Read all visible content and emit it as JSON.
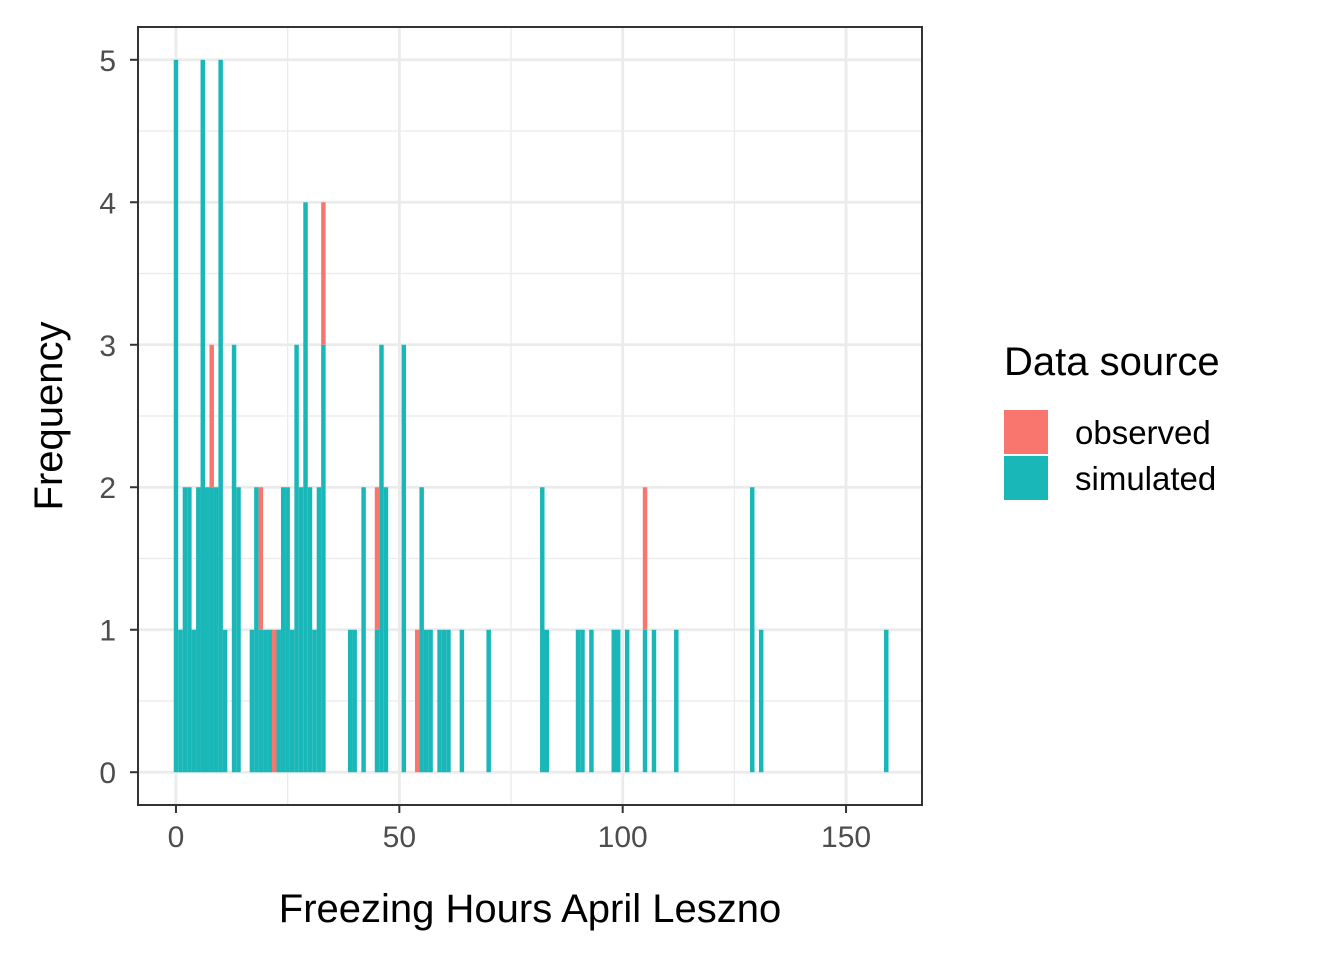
{
  "chart_data": {
    "type": "bar",
    "subtype": "stacked-histogram",
    "title": "",
    "xlabel": "Freezing Hours April Leszno",
    "ylabel": "Frequency",
    "xlim": [
      -8.5,
      167
    ],
    "ylim": [
      -0.23,
      5.23
    ],
    "x_ticks": [
      0,
      50,
      100,
      150
    ],
    "y_ticks": [
      0,
      1,
      2,
      3,
      4,
      5
    ],
    "x_minor_ticks": [
      25,
      75,
      125
    ],
    "y_minor_ticks": [
      0.5,
      1.5,
      2.5,
      3.5,
      4.5
    ],
    "bin_width": 1,
    "grid": true,
    "legend": {
      "title": "Data source",
      "position": "right"
    },
    "colors": {
      "observed": "#F8766D",
      "simulated": "#19B7B8"
    },
    "series": [
      {
        "name": "observed",
        "bins": [
          {
            "x": 8,
            "count": 1
          },
          {
            "x": 19,
            "count": 1
          },
          {
            "x": 22,
            "count": 1
          },
          {
            "x": 33,
            "count": 1
          },
          {
            "x": 45,
            "count": 1
          },
          {
            "x": 54,
            "count": 1
          },
          {
            "x": 105,
            "count": 1
          }
        ]
      },
      {
        "name": "simulated",
        "bins": [
          {
            "x": 0,
            "count": 5
          },
          {
            "x": 1,
            "count": 1
          },
          {
            "x": 2,
            "count": 2
          },
          {
            "x": 3,
            "count": 2
          },
          {
            "x": 4,
            "count": 1
          },
          {
            "x": 5,
            "count": 2
          },
          {
            "x": 6,
            "count": 5
          },
          {
            "x": 7,
            "count": 2
          },
          {
            "x": 8,
            "count": 2
          },
          {
            "x": 9,
            "count": 2
          },
          {
            "x": 10,
            "count": 5
          },
          {
            "x": 11,
            "count": 1
          },
          {
            "x": 13,
            "count": 3
          },
          {
            "x": 14,
            "count": 2
          },
          {
            "x": 17,
            "count": 1
          },
          {
            "x": 18,
            "count": 2
          },
          {
            "x": 19,
            "count": 1
          },
          {
            "x": 20,
            "count": 1
          },
          {
            "x": 21,
            "count": 1
          },
          {
            "x": 23,
            "count": 1
          },
          {
            "x": 24,
            "count": 2
          },
          {
            "x": 25,
            "count": 2
          },
          {
            "x": 26,
            "count": 1
          },
          {
            "x": 27,
            "count": 3
          },
          {
            "x": 28,
            "count": 2
          },
          {
            "x": 29,
            "count": 4
          },
          {
            "x": 30,
            "count": 2
          },
          {
            "x": 31,
            "count": 1
          },
          {
            "x": 32,
            "count": 2
          },
          {
            "x": 33,
            "count": 3
          },
          {
            "x": 39,
            "count": 1
          },
          {
            "x": 40,
            "count": 1
          },
          {
            "x": 42,
            "count": 2
          },
          {
            "x": 45,
            "count": 1
          },
          {
            "x": 46,
            "count": 3
          },
          {
            "x": 47,
            "count": 2
          },
          {
            "x": 51,
            "count": 3
          },
          {
            "x": 55,
            "count": 2
          },
          {
            "x": 56,
            "count": 1
          },
          {
            "x": 57,
            "count": 1
          },
          {
            "x": 59,
            "count": 1
          },
          {
            "x": 60,
            "count": 1
          },
          {
            "x": 61,
            "count": 1
          },
          {
            "x": 64,
            "count": 1
          },
          {
            "x": 70,
            "count": 1
          },
          {
            "x": 82,
            "count": 2
          },
          {
            "x": 83,
            "count": 1
          },
          {
            "x": 90,
            "count": 1
          },
          {
            "x": 91,
            "count": 1
          },
          {
            "x": 93,
            "count": 1
          },
          {
            "x": 98,
            "count": 1
          },
          {
            "x": 99,
            "count": 1
          },
          {
            "x": 101,
            "count": 1
          },
          {
            "x": 105,
            "count": 1
          },
          {
            "x": 107,
            "count": 1
          },
          {
            "x": 112,
            "count": 1
          },
          {
            "x": 129,
            "count": 2
          },
          {
            "x": 131,
            "count": 1
          },
          {
            "x": 159,
            "count": 1
          }
        ]
      }
    ]
  }
}
